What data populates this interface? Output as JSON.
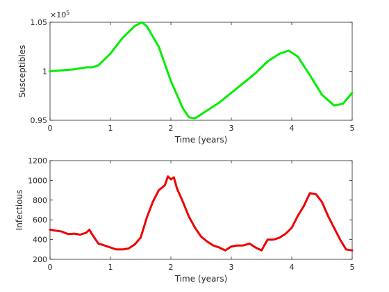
{
  "chart_data": [
    {
      "type": "line",
      "xlabel": "Time (years)",
      "ylabel": "Susceptibles",
      "exponent_label": "×10",
      "exponent_power": "5",
      "xlim": [
        0,
        5
      ],
      "ylim": [
        0.95,
        1.05
      ],
      "xticks": [
        0,
        1,
        2,
        3,
        4,
        5
      ],
      "xtick_labels": [
        "0",
        "1",
        "2",
        "3",
        "4",
        "5"
      ],
      "yticks": [
        0.95,
        1.0,
        1.05
      ],
      "ytick_labels": [
        "0.95",
        "1",
        "1.05"
      ],
      "grid": false,
      "series": [
        {
          "color": "#00ee00",
          "x": [
            0,
            0.2,
            0.4,
            0.6,
            0.7,
            0.8,
            1.0,
            1.2,
            1.4,
            1.52,
            1.6,
            1.8,
            2.0,
            2.2,
            2.3,
            2.4,
            2.6,
            2.8,
            3.0,
            3.2,
            3.4,
            3.6,
            3.8,
            3.95,
            4.1,
            4.3,
            4.5,
            4.7,
            4.85,
            5.0
          ],
          "y": [
            1.0,
            1.001,
            1.002,
            1.004,
            1.004,
            1.006,
            1.018,
            1.034,
            1.046,
            1.05,
            1.046,
            1.025,
            0.99,
            0.962,
            0.953,
            0.952,
            0.96,
            0.968,
            0.978,
            0.988,
            0.998,
            1.01,
            1.018,
            1.021,
            1.015,
            0.996,
            0.976,
            0.965,
            0.967,
            0.978
          ]
        }
      ]
    },
    {
      "type": "line",
      "xlabel": "Time (years)",
      "ylabel": "Infectious",
      "xlim": [
        0,
        5
      ],
      "ylim": [
        200,
        1200
      ],
      "xticks": [
        0,
        1,
        2,
        3,
        4,
        5
      ],
      "xtick_labels": [
        "0",
        "1",
        "2",
        "3",
        "4",
        "5"
      ],
      "yticks": [
        200,
        400,
        600,
        800,
        1000,
        1200
      ],
      "ytick_labels": [
        "200",
        "400",
        "600",
        "800",
        "1000",
        "1200"
      ],
      "grid": false,
      "series": [
        {
          "color": "#ee0000",
          "x": [
            0,
            0.1,
            0.2,
            0.3,
            0.4,
            0.5,
            0.6,
            0.65,
            0.7,
            0.8,
            0.9,
            1.0,
            1.1,
            1.2,
            1.3,
            1.4,
            1.5,
            1.6,
            1.7,
            1.8,
            1.9,
            1.95,
            2.0,
            2.05,
            2.1,
            2.2,
            2.3,
            2.4,
            2.5,
            2.6,
            2.7,
            2.8,
            2.9,
            3.0,
            3.1,
            3.2,
            3.3,
            3.4,
            3.5,
            3.6,
            3.7,
            3.8,
            3.9,
            4.0,
            4.1,
            4.2,
            4.3,
            4.4,
            4.5,
            4.6,
            4.7,
            4.8,
            4.9,
            5.0
          ],
          "y": [
            500,
            490,
            480,
            455,
            460,
            450,
            470,
            500,
            450,
            360,
            340,
            320,
            300,
            300,
            310,
            350,
            420,
            620,
            780,
            900,
            950,
            1040,
            1010,
            1030,
            920,
            780,
            630,
            520,
            430,
            380,
            340,
            320,
            290,
            330,
            340,
            340,
            360,
            320,
            290,
            400,
            400,
            420,
            460,
            520,
            640,
            740,
            870,
            860,
            780,
            640,
            520,
            400,
            300,
            290
          ]
        }
      ]
    }
  ]
}
